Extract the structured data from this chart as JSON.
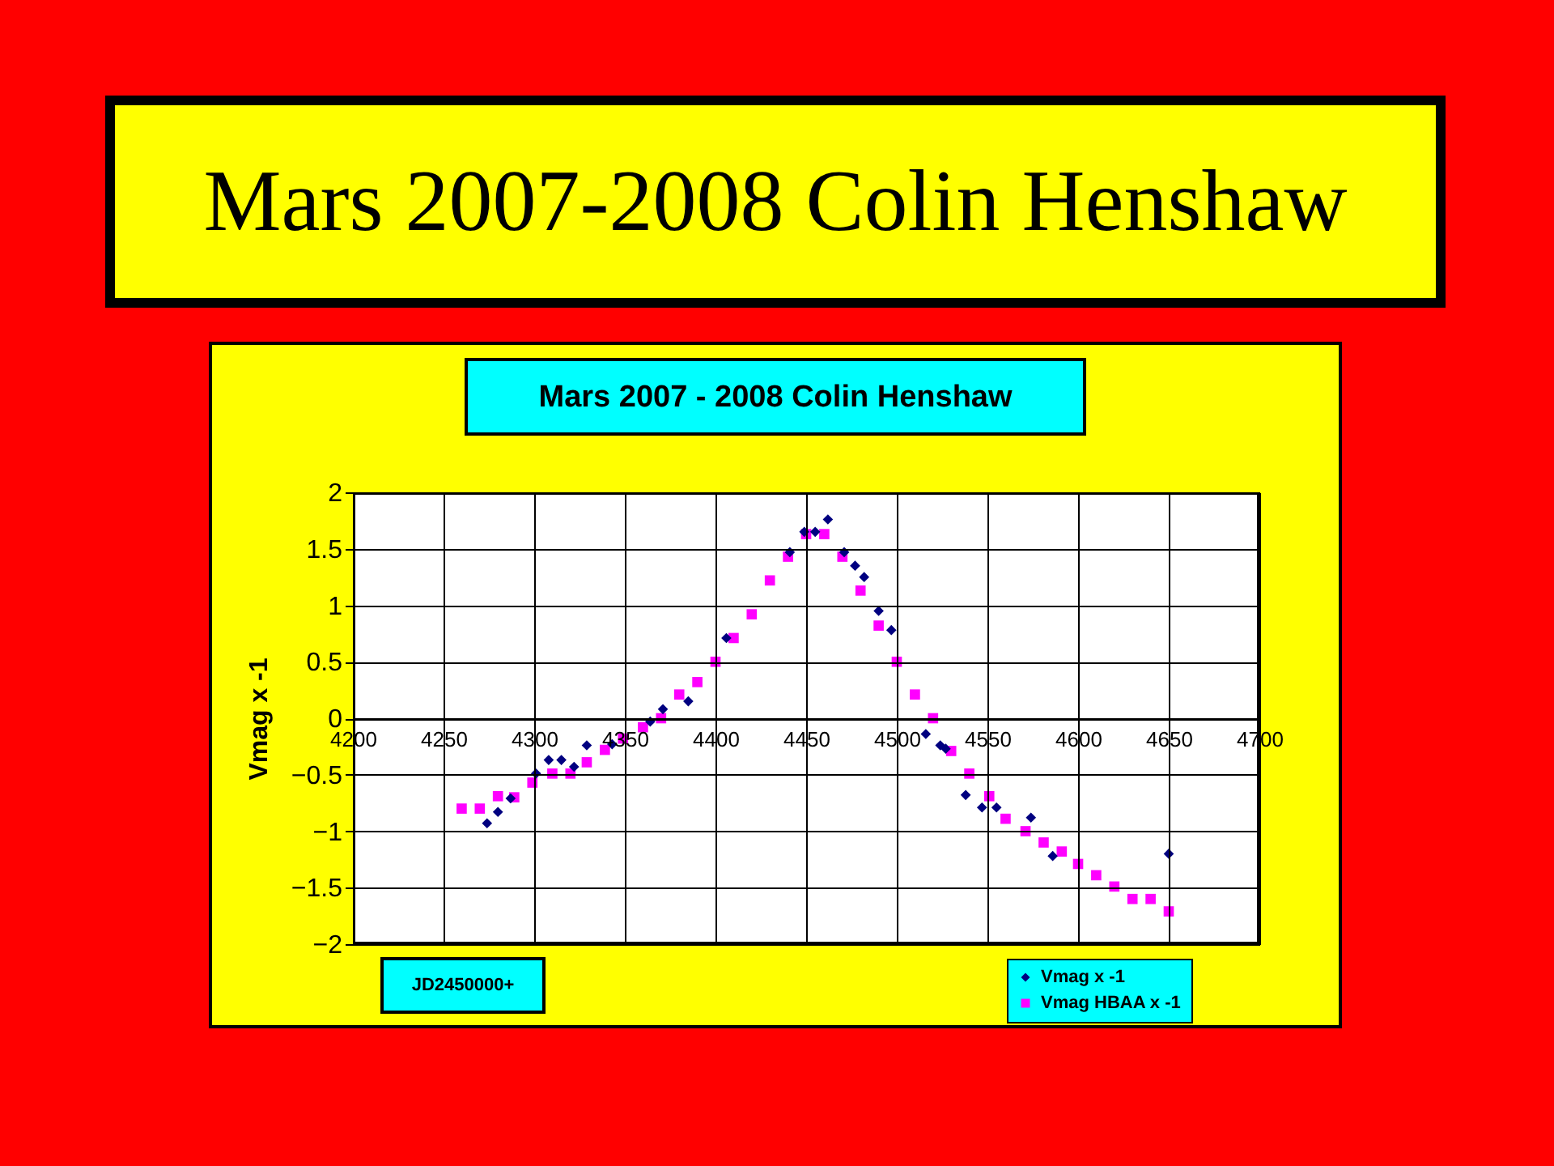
{
  "chart_data": {
    "type": "scatter",
    "title": "Mars 2007-2008 Colin Henshaw",
    "subtitle": "Mars 2007 - 2008 Colin Henshaw",
    "xlabel": "JD2450000+",
    "ylabel": "Vmag x -1",
    "xlim": [
      4200,
      4700
    ],
    "xticks": [
      4200,
      4250,
      4300,
      4350,
      4400,
      4450,
      4500,
      4550,
      4600,
      4650,
      4700
    ],
    "ylim": [
      -2,
      2
    ],
    "yticks": [
      -2,
      -1.5,
      -1,
      -0.5,
      0,
      0.5,
      1,
      1.5,
      2
    ],
    "grid": true,
    "legend": "bottom right",
    "series": [
      {
        "name": "Vmag x -1",
        "color": "#000080",
        "marker": "diamond",
        "x": [
          4274,
          4280,
          4287,
          4301,
          4308,
          4315,
          4322,
          4329,
          4343,
          4364,
          4371,
          4385,
          4406,
          4441,
          4449,
          4455,
          4462,
          4471,
          4477,
          4482,
          4490,
          4497,
          4516,
          4524,
          4527,
          4538,
          4547,
          4555,
          4574,
          4586,
          4650
        ],
        "values": [
          -0.93,
          -0.83,
          -0.71,
          -0.49,
          -0.37,
          -0.37,
          -0.43,
          -0.24,
          -0.23,
          -0.03,
          0.08,
          0.15,
          0.71,
          1.47,
          1.65,
          1.65,
          1.76,
          1.47,
          1.35,
          1.25,
          0.95,
          0.78,
          -0.14,
          -0.24,
          -0.27,
          -0.68,
          -0.79,
          -0.79,
          -0.88,
          -1.22,
          -1.2
        ]
      },
      {
        "name": "Vmag HBAA x -1",
        "color": "#ff00ff",
        "marker": "square",
        "x": [
          4260,
          4270,
          4280,
          4289,
          4299,
          4310,
          4320,
          4329,
          4339,
          4349,
          4360,
          4370,
          4380,
          4390,
          4400,
          4410,
          4420,
          4430,
          4440,
          4450,
          4460,
          4470,
          4480,
          4490,
          4500,
          4510,
          4520,
          4530,
          4540,
          4551,
          4560,
          4571,
          4581,
          4591,
          4600,
          4610,
          4620,
          4630,
          4640,
          4650
        ],
        "values": [
          -0.8,
          -0.8,
          -0.69,
          -0.7,
          -0.57,
          -0.49,
          -0.49,
          -0.39,
          -0.28,
          -0.18,
          -0.08,
          0,
          0.21,
          0.32,
          0.5,
          0.71,
          0.92,
          1.22,
          1.43,
          1.63,
          1.63,
          1.43,
          1.13,
          0.82,
          0.5,
          0.21,
          0,
          -0.29,
          -0.49,
          -0.69,
          -0.89,
          -1.0,
          -1.1,
          -1.18,
          -1.29,
          -1.39,
          -1.49,
          -1.6,
          -1.6,
          -1.71
        ]
      }
    ]
  }
}
